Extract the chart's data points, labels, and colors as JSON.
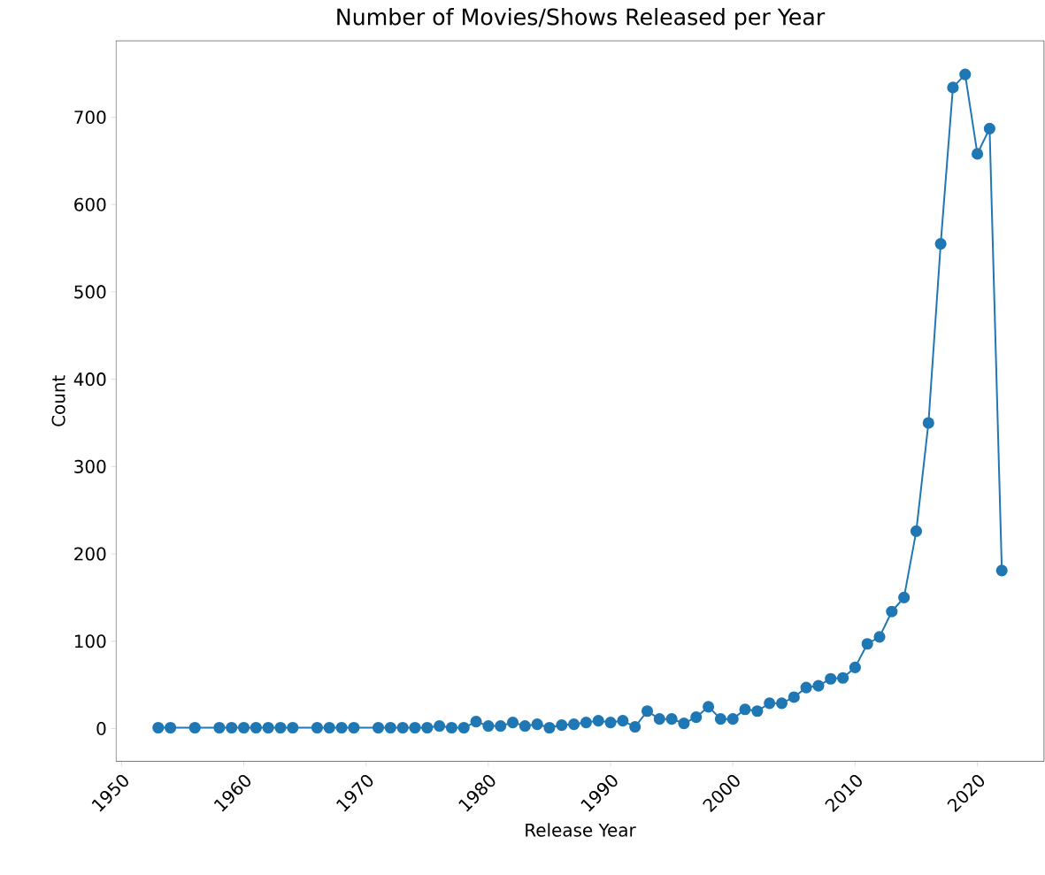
{
  "chart_data": {
    "type": "line",
    "title": "Number of Movies/Shows Released per Year",
    "xlabel": "Release Year",
    "ylabel": "Count",
    "x": [
      1953,
      1954,
      1956,
      1958,
      1959,
      1960,
      1961,
      1962,
      1963,
      1964,
      1966,
      1967,
      1968,
      1969,
      1971,
      1972,
      1973,
      1974,
      1975,
      1976,
      1977,
      1978,
      1979,
      1980,
      1981,
      1982,
      1983,
      1984,
      1985,
      1986,
      1987,
      1988,
      1989,
      1990,
      1991,
      1992,
      1993,
      1994,
      1995,
      1996,
      1997,
      1998,
      1999,
      2000,
      2001,
      2002,
      2003,
      2004,
      2005,
      2006,
      2007,
      2008,
      2009,
      2010,
      2011,
      2012,
      2013,
      2014,
      2015,
      2016,
      2017,
      2018,
      2019,
      2020,
      2021,
      2022
    ],
    "series": [
      {
        "color": "#1f77b4",
        "values": [
          1,
          1,
          1,
          1,
          1,
          1,
          1,
          1,
          1,
          1,
          1,
          1,
          1,
          1,
          1,
          1,
          1,
          1,
          1,
          3,
          1,
          1,
          8,
          3,
          3,
          7,
          3,
          5,
          1,
          4,
          5,
          7,
          9,
          7,
          9,
          2,
          20,
          11,
          11,
          6,
          13,
          25,
          11,
          11,
          22,
          20,
          29,
          29,
          36,
          47,
          49,
          57,
          58,
          70,
          97,
          105,
          134,
          150,
          226,
          350,
          555,
          734,
          749,
          658,
          687,
          181
        ]
      }
    ],
    "xlim": [
      1949.55,
      2025.45
    ],
    "ylim": [
      -37.5,
      787.5
    ],
    "xticks": [
      1950,
      1960,
      1970,
      1980,
      1990,
      2000,
      2010,
      2020
    ],
    "yticks": [
      0,
      100,
      200,
      300,
      400,
      500,
      600,
      700
    ],
    "marker": "circle",
    "line_style": "solid",
    "grid": false,
    "legend": false
  }
}
